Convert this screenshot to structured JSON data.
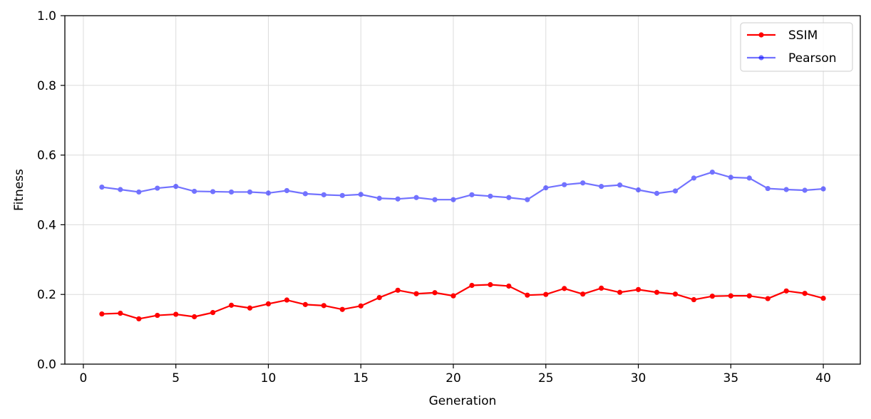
{
  "chart_data": {
    "type": "line",
    "title": "",
    "xlabel": "Generation",
    "ylabel": "Fitness",
    "xlim": [
      -1,
      42
    ],
    "ylim": [
      0,
      1
    ],
    "xticks": [
      0,
      5,
      10,
      15,
      20,
      25,
      30,
      35,
      40
    ],
    "yticks": [
      0.0,
      0.2,
      0.4,
      0.6,
      0.8,
      1.0
    ],
    "xtick_labels": [
      "0",
      "5",
      "10",
      "15",
      "20",
      "25",
      "30",
      "35",
      "40"
    ],
    "ytick_labels": [
      "0.0",
      "0.2",
      "0.4",
      "0.6",
      "0.8",
      "1.0"
    ],
    "grid": true,
    "legend_position": "top-right",
    "x": [
      1,
      2,
      3,
      4,
      5,
      6,
      7,
      8,
      9,
      10,
      11,
      12,
      13,
      14,
      15,
      16,
      17,
      18,
      19,
      20,
      21,
      22,
      23,
      24,
      25,
      26,
      27,
      28,
      29,
      30,
      31,
      32,
      33,
      34,
      35,
      36,
      37,
      38,
      39,
      40
    ],
    "series": [
      {
        "name": "SSIM",
        "color": "#ff0000",
        "values": [
          0.144,
          0.146,
          0.13,
          0.14,
          0.143,
          0.136,
          0.148,
          0.169,
          0.161,
          0.173,
          0.184,
          0.171,
          0.168,
          0.157,
          0.167,
          0.191,
          0.212,
          0.202,
          0.205,
          0.196,
          0.226,
          0.228,
          0.224,
          0.198,
          0.2,
          0.217,
          0.201,
          0.218,
          0.206,
          0.214,
          0.206,
          0.201,
          0.185,
          0.195,
          0.196,
          0.196,
          0.188,
          0.21,
          0.203,
          0.189
        ]
      },
      {
        "name": "Pearson",
        "color": "#0000ff",
        "values": [
          0.508,
          0.501,
          0.494,
          0.505,
          0.51,
          0.496,
          0.495,
          0.494,
          0.494,
          0.491,
          0.498,
          0.489,
          0.486,
          0.484,
          0.487,
          0.476,
          0.474,
          0.478,
          0.472,
          0.472,
          0.486,
          0.482,
          0.478,
          0.472,
          0.506,
          0.515,
          0.52,
          0.51,
          0.514,
          0.5,
          0.49,
          0.497,
          0.534,
          0.551,
          0.536,
          0.534,
          0.504,
          0.501,
          0.499,
          0.503
        ]
      }
    ]
  }
}
